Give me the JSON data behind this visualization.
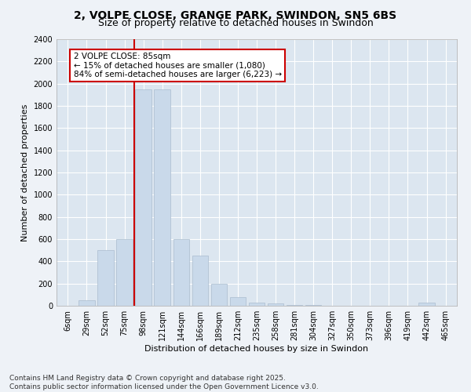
{
  "title1": "2, VOLPE CLOSE, GRANGE PARK, SWINDON, SN5 6BS",
  "title2": "Size of property relative to detached houses in Swindon",
  "xlabel": "Distribution of detached houses by size in Swindon",
  "ylabel": "Number of detached properties",
  "categories": [
    "6sqm",
    "29sqm",
    "52sqm",
    "75sqm",
    "98sqm",
    "121sqm",
    "144sqm",
    "166sqm",
    "189sqm",
    "212sqm",
    "235sqm",
    "258sqm",
    "281sqm",
    "304sqm",
    "327sqm",
    "350sqm",
    "373sqm",
    "396sqm",
    "419sqm",
    "442sqm",
    "465sqm"
  ],
  "values": [
    0,
    50,
    500,
    600,
    1950,
    1950,
    600,
    450,
    200,
    80,
    30,
    20,
    10,
    5,
    0,
    0,
    0,
    0,
    0,
    30,
    0
  ],
  "bar_color": "#c9d9ea",
  "bar_edge_color": "#aabcce",
  "vline_color": "#cc0000",
  "vline_x_index": 3.5,
  "annotation_text": "2 VOLPE CLOSE: 85sqm\n← 15% of detached houses are smaller (1,080)\n84% of semi-detached houses are larger (6,223) →",
  "annotation_box_color": "#cc0000",
  "plot_bg_color": "#dce6f0",
  "fig_bg_color": "#eef2f7",
  "ylim": [
    0,
    2400
  ],
  "yticks": [
    0,
    200,
    400,
    600,
    800,
    1000,
    1200,
    1400,
    1600,
    1800,
    2000,
    2200,
    2400
  ],
  "footer_text": "Contains HM Land Registry data © Crown copyright and database right 2025.\nContains public sector information licensed under the Open Government Licence v3.0.",
  "title1_fontsize": 10,
  "title2_fontsize": 9,
  "axis_label_fontsize": 8,
  "tick_fontsize": 7,
  "annotation_fontsize": 7.5,
  "footer_fontsize": 6.5
}
